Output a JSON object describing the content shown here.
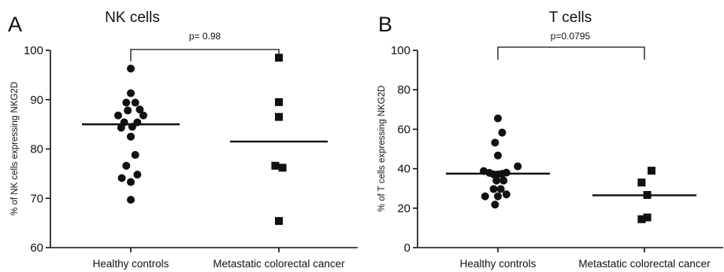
{
  "chart_data": [
    {
      "type": "scatter",
      "panel_label": "A",
      "title": "NK cells",
      "xlabel": "",
      "ylabel": "% of NK cells expressing NKG2D",
      "ylim": [
        60,
        100
      ],
      "yticks": [
        60,
        70,
        80,
        90,
        100
      ],
      "categories": [
        "Healthy controls",
        "Metastatic colorectal cancer"
      ],
      "comparison": "p= 0.98",
      "series": [
        {
          "marker": "circle",
          "mean": 85,
          "points": [
            {
              "x": 0.0,
              "y": 96.3
            },
            {
              "x": 0.0,
              "y": 91.3
            },
            {
              "x": -0.15,
              "y": 89.4
            },
            {
              "x": 0.15,
              "y": 89.4
            },
            {
              "x": 0.3,
              "y": 88.0
            },
            {
              "x": -0.1,
              "y": 87.8
            },
            {
              "x": -0.42,
              "y": 86.8
            },
            {
              "x": 0.42,
              "y": 86.8
            },
            {
              "x": -0.22,
              "y": 85.4
            },
            {
              "x": 0.22,
              "y": 85.4
            },
            {
              "x": -0.32,
              "y": 84.3
            },
            {
              "x": 0.05,
              "y": 84.5
            },
            {
              "x": 0.0,
              "y": 82.5
            },
            {
              "x": 0.15,
              "y": 78.8
            },
            {
              "x": -0.15,
              "y": 76.6
            },
            {
              "x": 0.22,
              "y": 74.8
            },
            {
              "x": -0.3,
              "y": 74.1
            },
            {
              "x": 0.0,
              "y": 73.3
            },
            {
              "x": 0.0,
              "y": 69.7
            }
          ]
        },
        {
          "marker": "square",
          "mean": 81.5,
          "points": [
            {
              "x": 0.0,
              "y": 98.5
            },
            {
              "x": 0.0,
              "y": 89.5
            },
            {
              "x": 0.0,
              "y": 86.5
            },
            {
              "x": -0.12,
              "y": 76.6
            },
            {
              "x": 0.12,
              "y": 76.2
            },
            {
              "x": 0.0,
              "y": 65.4
            }
          ]
        }
      ]
    },
    {
      "type": "scatter",
      "panel_label": "B",
      "title": "T cells",
      "xlabel": "",
      "ylabel": "% of T cells expressing NKG2D",
      "ylim": [
        0,
        100
      ],
      "yticks": [
        0,
        20,
        40,
        60,
        80,
        100
      ],
      "categories": [
        "Healthy controls",
        "Metastatic colorectal cancer"
      ],
      "comparison": "p=0.0795",
      "series": [
        {
          "marker": "circle",
          "mean": 37.5,
          "points": [
            {
              "x": 0.0,
              "y": 65.5
            },
            {
              "x": 0.15,
              "y": 58.3
            },
            {
              "x": -0.1,
              "y": 53.2
            },
            {
              "x": 0.0,
              "y": 46.7
            },
            {
              "x": -0.5,
              "y": 38.8
            },
            {
              "x": -0.3,
              "y": 37.9
            },
            {
              "x": -0.15,
              "y": 37.1
            },
            {
              "x": 0.0,
              "y": 37.1
            },
            {
              "x": 0.15,
              "y": 37.4
            },
            {
              "x": 0.3,
              "y": 38.0
            },
            {
              "x": 0.7,
              "y": 41.2
            },
            {
              "x": -0.05,
              "y": 34.0
            },
            {
              "x": 0.2,
              "y": 34.0
            },
            {
              "x": -0.15,
              "y": 29.7
            },
            {
              "x": 0.1,
              "y": 29.7
            },
            {
              "x": -0.45,
              "y": 26.0
            },
            {
              "x": 0.0,
              "y": 26.0
            },
            {
              "x": 0.3,
              "y": 27.0
            },
            {
              "x": -0.1,
              "y": 21.8
            }
          ]
        },
        {
          "marker": "square",
          "mean": 26.5,
          "points": [
            {
              "x": 0.25,
              "y": 39.0
            },
            {
              "x": -0.1,
              "y": 33.0
            },
            {
              "x": 0.1,
              "y": 26.7
            },
            {
              "x": 0.1,
              "y": 15.3
            },
            {
              "x": -0.1,
              "y": 14.4
            }
          ]
        }
      ]
    }
  ]
}
